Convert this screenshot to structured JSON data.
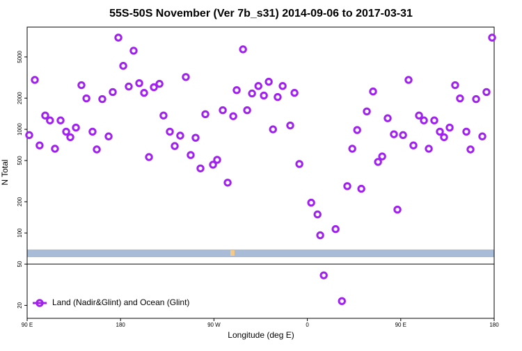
{
  "chart_data": {
    "type": "scatter",
    "title": "55S-50S November (Ver 7b_s31)   2014-09-06 to 2017-03-31",
    "x_label": "Longitude (deg E)",
    "y_label": "N Total",
    "log_y": true,
    "legend": "bottomleft",
    "xlim": [
      90,
      540
    ],
    "ylim": [
      15,
      9700
    ],
    "xticks": [
      {
        "value": 90,
        "label": "90 E"
      },
      180,
      {
        "value": 270,
        "label": "90 W"
      },
      {
        "value": 360,
        "label": "0"
      },
      {
        "value": 450,
        "label": "90 E"
      },
      {
        "value": 540,
        "label": "180"
      }
    ],
    "yticks": [
      20,
      50,
      100,
      200,
      500,
      1000,
      2000,
      5000
    ],
    "series": [
      {
        "name": "Land (Nadir&Glint) and Ocean (Glint)",
        "color": "#a020f0",
        "x": [
          92,
          97.4,
          102,
          107.4,
          112,
          116.8,
          122.2,
          127.6,
          131.6,
          137,
          142.3,
          147.1,
          153,
          157.1,
          162.4,
          168.5,
          172.5,
          177.9,
          182.6,
          187.9,
          192.6,
          198,
          202.7,
          207.4,
          212.1,
          217.5,
          221.4,
          227.5,
          232.2,
          237.5,
          242.9,
          247.6,
          252.3,
          257,
          261.7,
          269.1,
          273.1,
          278.5,
          283.2,
          288.6,
          291.9,
          298,
          302,
          306.7,
          312.8,
          318.1,
          322.8,
          326.9,
          331.4,
          336.2,
          343.5,
          347.6,
          352.3,
          363.7,
          369.8,
          372.4,
          375.8,
          387.2,
          393.3,
          398.5,
          403.3,
          408,
          412,
          417.3,
          423.3,
          428.1,
          432.1,
          437.4,
          443.4,
          446.8,
          452.2,
          457.5,
          462.2,
          467.6,
          472.3,
          477,
          482.3,
          487.7,
          491.7,
          497.1,
          502.4,
          507.1,
          513.2,
          517.2,
          522.6,
          528.6,
          532.6,
          538
        ],
        "values": [
          880,
          3000,
          700,
          1360,
          1220,
          650,
          1220,
          950,
          840,
          1040,
          2670,
          1990,
          950,
          640,
          1960,
          855,
          2290,
          7680,
          4100,
          2590,
          5740,
          2790,
          2250,
          540,
          2550,
          2750,
          1360,
          950,
          690,
          870,
          3200,
          565,
          830,
          420,
          1400,
          456,
          508,
          1530,
          306,
          1340,
          2390,
          5920,
          1530,
          2220,
          2620,
          2120,
          2880,
          1000,
          2050,
          2620,
          1090,
          2250,
          463,
          196,
          151,
          95,
          39,
          109,
          22,
          283,
          650,
          985,
          267,
          1490,
          2320,
          485,
          548,
          1280,
          897,
          168,
          880,
          3000,
          700,
          1360,
          1220,
          650,
          1220,
          950,
          840,
          1040,
          2670,
          1990,
          950,
          640,
          1960,
          855,
          2290,
          7680
        ]
      }
    ]
  }
}
